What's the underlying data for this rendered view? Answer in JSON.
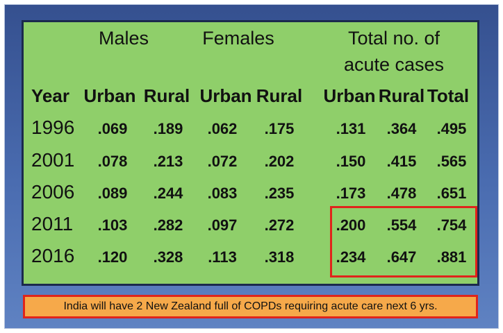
{
  "headers": {
    "males": "Males",
    "females": "Females",
    "total_line1": "Total no. of",
    "total_line2": "acute cases",
    "year": "Year",
    "urban": "Urban",
    "rural": "Rural",
    "total": "Total"
  },
  "rows": [
    {
      "year": "1996",
      "values": [
        ".069",
        ".189",
        ".062",
        ".175",
        ".131",
        ".364",
        ".495"
      ]
    },
    {
      "year": "2001",
      "values": [
        ".078",
        ".213",
        ".072",
        ".202",
        ".150",
        ".415",
        ".565"
      ]
    },
    {
      "year": "2006",
      "values": [
        ".089",
        ".244",
        ".083",
        ".235",
        ".173",
        ".478",
        ".651"
      ]
    },
    {
      "year": "2011",
      "values": [
        ".103",
        ".282",
        ".097",
        ".272",
        ".200",
        ".554",
        ".754"
      ]
    },
    {
      "year": "2016",
      "values": [
        ".120",
        ".328",
        ".113",
        ".318",
        ".234",
        ".647",
        ".881"
      ]
    }
  ],
  "footer": "India will have 2 New Zealand full of COPDs requiring acute care next 6 yrs.",
  "colors": {
    "panel": "#8fcf6a",
    "highlight_border": "#e0241b",
    "footer_bg": "#f6a94a",
    "slide_bg": "#4a6cb0"
  }
}
